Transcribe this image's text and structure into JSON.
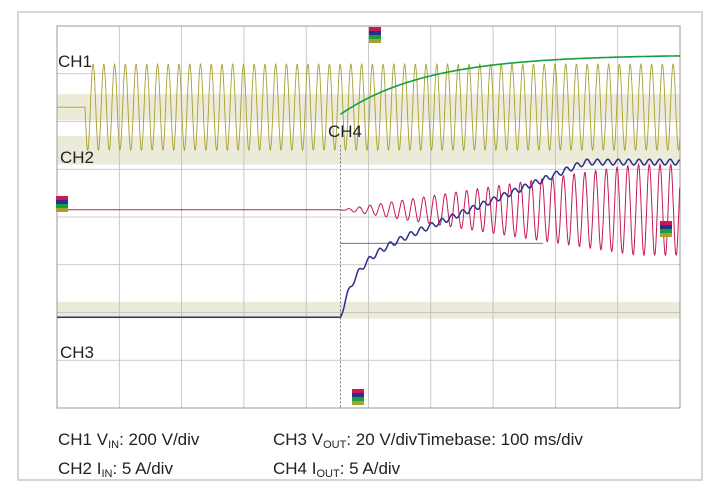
{
  "chart_data": {
    "type": "line",
    "title": "",
    "xlabel": "",
    "ylabel": "",
    "grid": true,
    "divisions": {
      "x": 10,
      "y": 8
    },
    "channels": [
      {
        "id": "CH1",
        "label": "CH1",
        "color": "#a8a030",
        "trace": "AC input voltage: flat before turn-on, then constant-amplitude sinusoid",
        "turn_on_div": 0.45,
        "cycles_per_div": 5.8,
        "amplitude_div": 0.9
      },
      {
        "id": "CH2",
        "label": "CH2",
        "color": "#c8185a",
        "trace": "Input current: flat, then oscillation growing from 0 to ~0.95 div",
        "turn_on_div": 4.55,
        "cycles_per_div": 5.8,
        "amplitude_div": 0.95
      },
      {
        "id": "CH3",
        "label": "CH3",
        "color": "#2a2f8a",
        "trace": "Output voltage rising with ripple, settling at top",
        "turn_on_div": 4.55,
        "baseline_div": 6.1,
        "final_div": 2.85,
        "ripple_div": 0.06
      },
      {
        "id": "CH4",
        "label": "CH4",
        "color": "#14a03c",
        "trace": "Output current rising exponentially to steady level",
        "turn_on_div": 4.55,
        "baseline_div": 1.85,
        "final_div": 0.6
      }
    ]
  },
  "labels": {
    "ch1": "CH1",
    "ch2": "CH2",
    "ch3": "CH3",
    "ch4": "CH4"
  },
  "caption": {
    "c1_pre": "CH1 V",
    "c1_sub": "IN",
    "c1_post": ": 200 V/div",
    "c2_pre": "CH2 I",
    "c2_sub": "IN",
    "c2_post": ": 5 A/div",
    "c3_pre": "CH3 V",
    "c3_sub": "OUT",
    "c3_post": ": 20 V/div",
    "c4_pre": "CH4 I",
    "c4_sub": "OUT",
    "c4_post": ": 5 A/div",
    "timebase": "Timebase: 100 ms/div"
  },
  "colors": {
    "frame": "#c8c8c8",
    "grid": "#bcbcbc",
    "band": "#ddd9b8"
  }
}
